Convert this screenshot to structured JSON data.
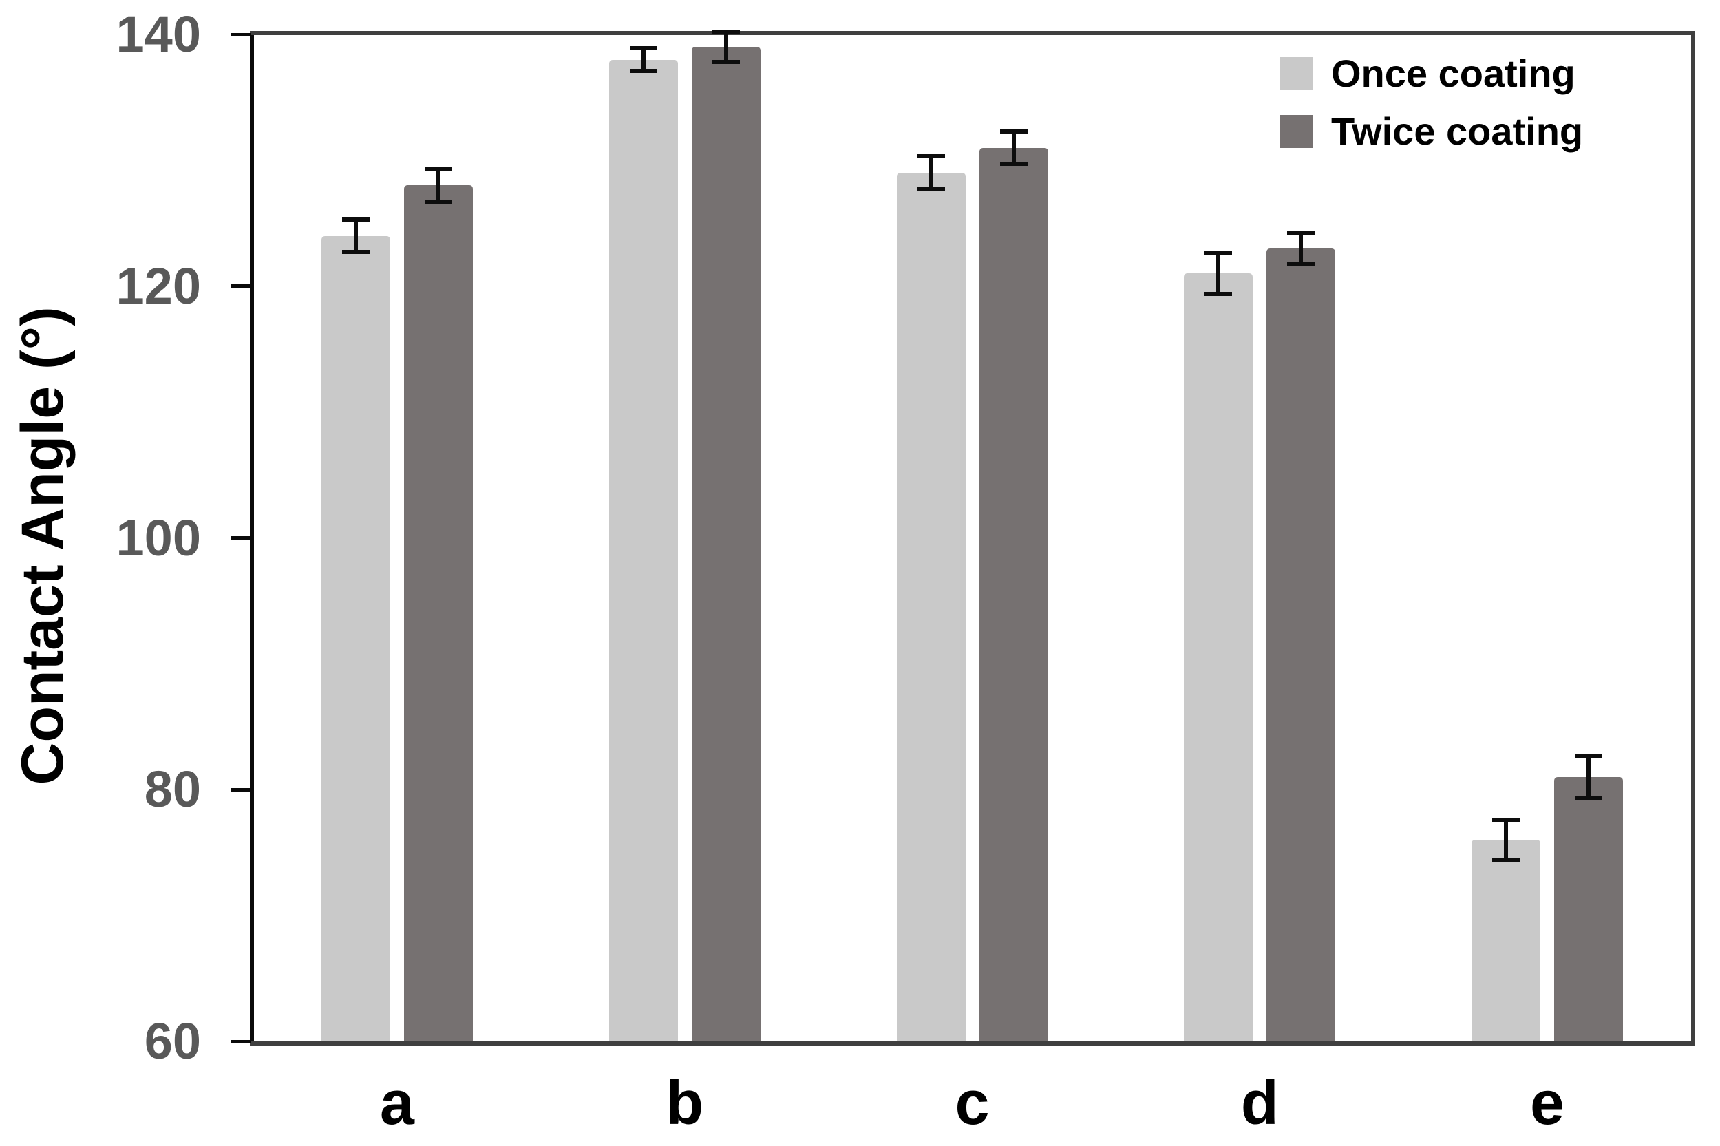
{
  "figure": {
    "background": "#ffffff",
    "axis_color": "#0a0a0a",
    "frame_color": "#3f3f3f",
    "tick_label_color": "#595959",
    "error_bar_color": "#0d0d0d"
  },
  "chart_data": {
    "type": "bar",
    "title": "",
    "xlabel": "",
    "ylabel": "Contact Angle (°)",
    "ylim": [
      60,
      140
    ],
    "yticks": [
      60,
      80,
      100,
      120,
      140
    ],
    "grid": false,
    "legend_position": "top-right",
    "categories": [
      "a",
      "b",
      "c",
      "d",
      "e"
    ],
    "series": [
      {
        "name": "Once coating",
        "color": "#c9c9c9",
        "values": [
          124,
          138,
          129,
          121,
          76
        ],
        "errors": [
          1.3,
          0.9,
          1.3,
          1.6,
          1.6
        ]
      },
      {
        "name": "Twice coating",
        "color": "#767171",
        "values": [
          128,
          139,
          131,
          123,
          81
        ],
        "errors": [
          1.3,
          1.2,
          1.3,
          1.2,
          1.7
        ]
      }
    ]
  }
}
